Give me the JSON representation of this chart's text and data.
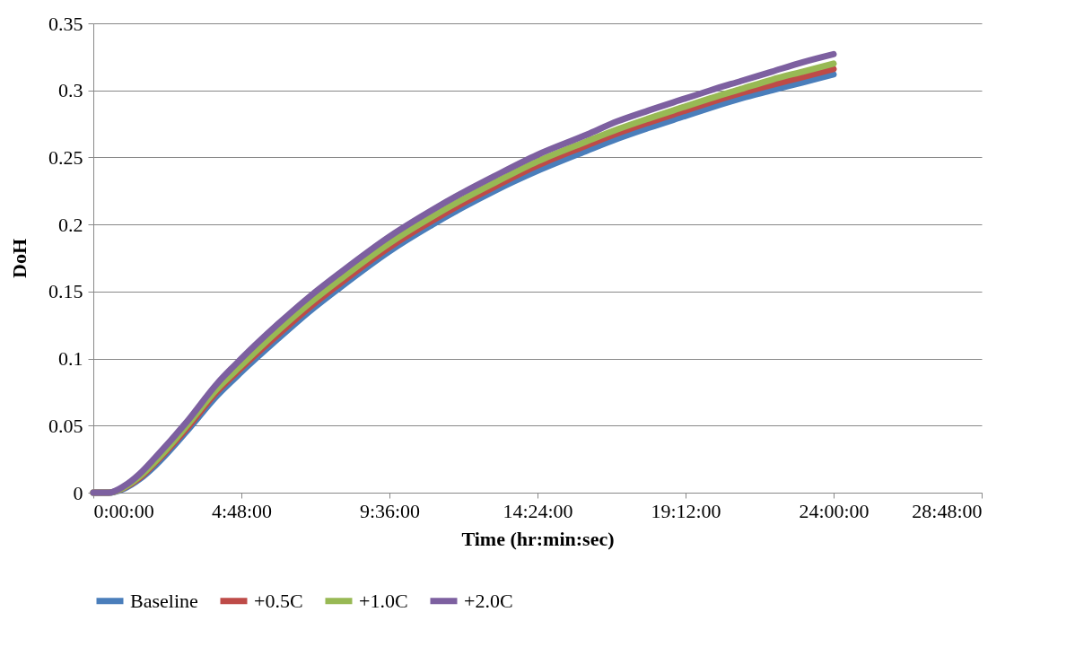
{
  "chart_data": {
    "type": "line",
    "xlabel": "Time (hr:min:sec)",
    "ylabel": "DoH",
    "x": [
      0,
      0.5,
      1,
      1.5,
      2,
      3,
      4,
      4.8,
      6,
      7,
      8,
      9.6,
      11,
      12,
      13,
      14.4,
      16,
      17,
      18,
      19.2,
      20,
      21,
      22,
      23,
      24
    ],
    "series": [
      {
        "name": "Baseline",
        "color": "#4a7ebb",
        "values": [
          0,
          0,
          0.003,
          0.01,
          0.02,
          0.045,
          0.072,
          0.09,
          0.115,
          0.135,
          0.153,
          0.18,
          0.2,
          0.213,
          0.225,
          0.24,
          0.255,
          0.264,
          0.272,
          0.281,
          0.287,
          0.294,
          0.3,
          0.306,
          0.312
        ]
      },
      {
        "name": "+0.5C",
        "color": "#be4b48",
        "values": [
          0,
          0,
          0.0036,
          0.011,
          0.022,
          0.047,
          0.075,
          0.093,
          0.118,
          0.138,
          0.156,
          0.183,
          0.203,
          0.216,
          0.228,
          0.244,
          0.259,
          0.268,
          0.276,
          0.285,
          0.291,
          0.298,
          0.304,
          0.31,
          0.316
        ]
      },
      {
        "name": "+1.0C",
        "color": "#98b954",
        "values": [
          0,
          0,
          0.004,
          0.012,
          0.023,
          0.049,
          0.077,
          0.095,
          0.121,
          0.141,
          0.159,
          0.186,
          0.206,
          0.219,
          0.231,
          0.247,
          0.262,
          0.271,
          0.279,
          0.288,
          0.294,
          0.301,
          0.308,
          0.314,
          0.32
        ]
      },
      {
        "name": "+2.0C",
        "color": "#7d60a0",
        "values": [
          0,
          0,
          0.005,
          0.014,
          0.026,
          0.052,
          0.081,
          0.1,
          0.126,
          0.146,
          0.164,
          0.191,
          0.211,
          0.224,
          0.236,
          0.252,
          0.267,
          0.277,
          0.285,
          0.294,
          0.3,
          0.307,
          0.314,
          0.321,
          0.327
        ]
      }
    ],
    "xlim": [
      0,
      28.8
    ],
    "xticks": [
      {
        "value": 0,
        "label": "0:00:00"
      },
      {
        "value": 4.8,
        "label": "4:48:00"
      },
      {
        "value": 9.6,
        "label": "9:36:00"
      },
      {
        "value": 14.4,
        "label": "14:24:00"
      },
      {
        "value": 19.2,
        "label": "19:12:00"
      },
      {
        "value": 24,
        "label": "24:00:00"
      },
      {
        "value": 28.8,
        "label": "28:48:00"
      }
    ],
    "ylim": [
      0,
      0.35
    ],
    "yticks": [
      0,
      0.05,
      0.1,
      0.15,
      0.2,
      0.25,
      0.3,
      0.35
    ],
    "grid": "y",
    "legend": "bottom",
    "marker": "none",
    "line_style": "solid"
  }
}
